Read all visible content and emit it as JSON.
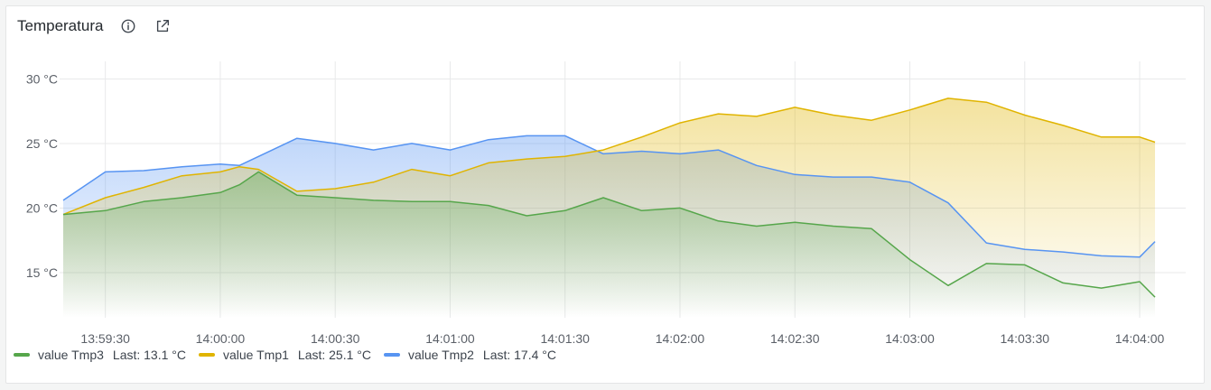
{
  "panel": {
    "title": "Temperatura",
    "info_icon": "info-icon",
    "link_icon": "external-link-icon"
  },
  "chart_data": {
    "type": "area",
    "x": [
      "13:59:19",
      "13:59:30",
      "13:59:40",
      "13:59:50",
      "14:00:00",
      "14:00:05",
      "14:00:10",
      "14:00:20",
      "14:00:30",
      "14:00:40",
      "14:00:50",
      "14:01:00",
      "14:01:10",
      "14:01:20",
      "14:01:30",
      "14:01:40",
      "14:01:50",
      "14:02:00",
      "14:02:10",
      "14:02:20",
      "14:02:30",
      "14:02:40",
      "14:02:50",
      "14:03:00",
      "14:03:10",
      "14:03:20",
      "14:03:30",
      "14:03:40",
      "14:03:50",
      "14:04:00",
      "14:04:04"
    ],
    "x_tick_labels": [
      "13:59:30",
      "14:00:00",
      "14:00:30",
      "14:01:00",
      "14:01:30",
      "14:02:00",
      "14:02:30",
      "14:03:00",
      "14:03:30",
      "14:04:00"
    ],
    "y_tick_labels": [
      "15 °C",
      "20 °C",
      "25 °C",
      "30 °C"
    ],
    "y_ticks": [
      15,
      20,
      25,
      30
    ],
    "ylim": [
      11.5,
      31.5
    ],
    "grid": true,
    "legend_placement": "bottom-left",
    "series": [
      {
        "name": "value Tmp3",
        "color": "#56a64b",
        "last_label": "Last: 13.1 °C",
        "values": [
          19.5,
          19.8,
          20.5,
          20.8,
          21.2,
          21.8,
          22.8,
          21.0,
          20.8,
          20.6,
          20.5,
          20.5,
          20.2,
          19.4,
          19.8,
          20.8,
          19.8,
          20.0,
          19.0,
          18.6,
          18.9,
          18.6,
          18.4,
          16.0,
          14.0,
          15.7,
          15.6,
          14.2,
          13.8,
          14.3,
          13.1
        ]
      },
      {
        "name": "value Tmp1",
        "color": "#e0b400",
        "last_label": "Last: 25.1 °C",
        "values": [
          19.5,
          20.8,
          21.6,
          22.5,
          22.8,
          23.2,
          23.0,
          21.3,
          21.5,
          22.0,
          23.0,
          22.5,
          23.5,
          23.8,
          24.0,
          24.5,
          25.5,
          26.6,
          27.3,
          27.1,
          27.8,
          27.2,
          26.8,
          27.6,
          28.5,
          28.2,
          27.2,
          26.4,
          25.5,
          25.5,
          25.1
        ]
      },
      {
        "name": "value Tmp2",
        "color": "#5794f2",
        "last_label": "Last: 17.4 °C",
        "values": [
          20.6,
          22.8,
          22.9,
          23.2,
          23.4,
          23.3,
          24.0,
          25.4,
          25.0,
          24.5,
          25.0,
          24.5,
          25.3,
          25.6,
          25.6,
          24.2,
          24.4,
          24.2,
          24.5,
          23.3,
          22.6,
          22.4,
          22.4,
          22.0,
          20.4,
          17.3,
          16.8,
          16.6,
          16.3,
          16.2,
          17.4
        ]
      }
    ]
  }
}
